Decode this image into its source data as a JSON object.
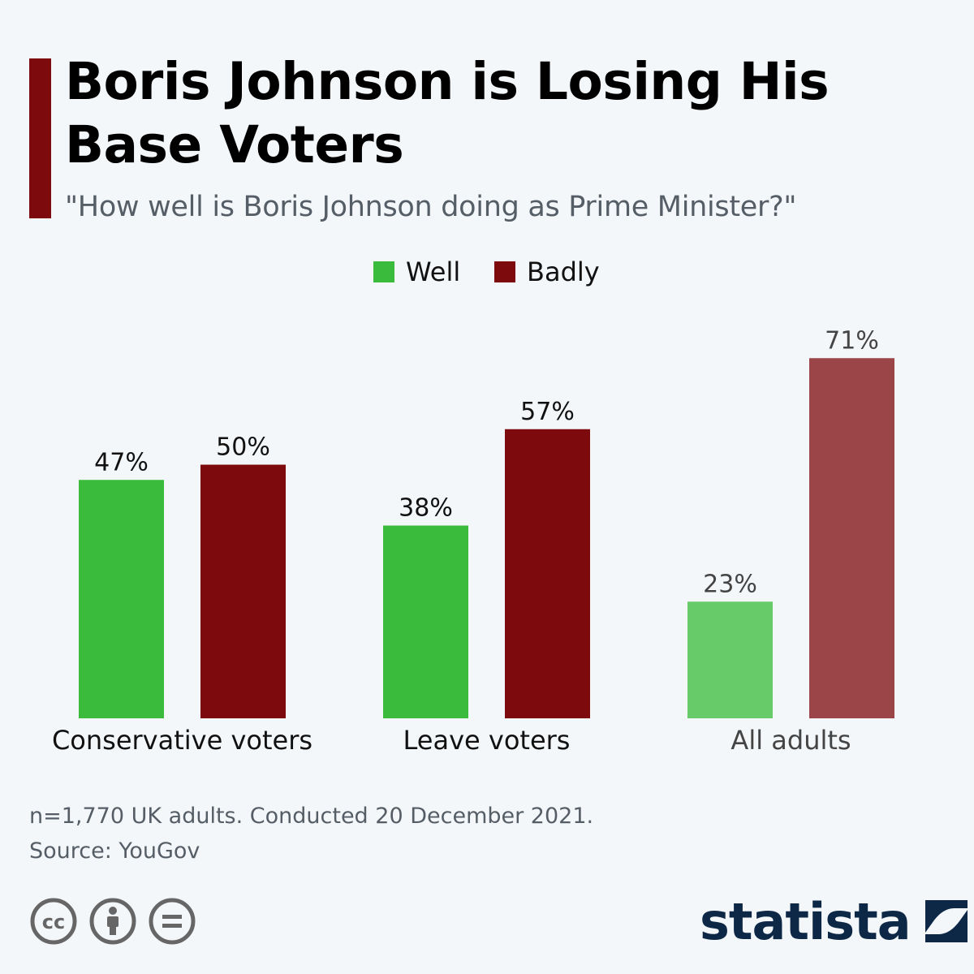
{
  "header": {
    "title": "Boris Johnson is Losing His Base Voters",
    "subtitle": "\"How well is Boris Johnson doing as Prime Minister?\""
  },
  "legend": [
    {
      "label": "Well",
      "color": "#3bbb3b"
    },
    {
      "label": "Badly",
      "color": "#7d0a0c"
    }
  ],
  "chart_data": {
    "type": "bar",
    "categories": [
      "Conservative voters",
      "Leave voters",
      "All adults"
    ],
    "series": [
      {
        "name": "Well",
        "values": [
          47,
          38,
          23
        ],
        "color": "#3bbb3b",
        "faded_color": "#67cb69"
      },
      {
        "name": "Badly",
        "values": [
          50,
          57,
          71
        ],
        "color": "#7d0a0c",
        "faded_color": "#9c4548"
      }
    ],
    "highlighted_categories": [
      "Conservative voters",
      "Leave voters"
    ],
    "value_suffix": "%",
    "ylim": [
      0,
      100
    ],
    "grid": false,
    "legend_position": "top-center"
  },
  "footer": {
    "note": "n=1,770 UK adults. Conducted 20 December 2021.",
    "source": "Source: YouGov",
    "brand": "statista"
  },
  "icons": [
    "creative-commons-icon",
    "attribution-icon",
    "no-derivatives-icon",
    "statista-logo-icon"
  ]
}
